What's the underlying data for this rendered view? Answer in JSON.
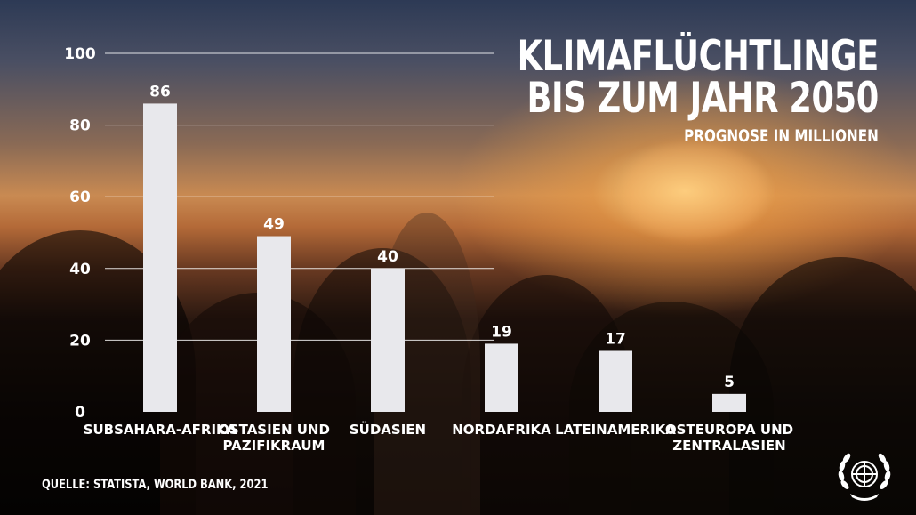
{
  "header": {
    "title_line1": "KLIMAFLÜCHTLINGE",
    "title_line2": "BIS ZUM JAHR 2050",
    "subtitle": "PROGNOSE IN MILLIONEN"
  },
  "footer": {
    "source": "QUELLE: STATISTA, WORLD BANK, 2021"
  },
  "logo": {
    "icon": "un-emblem-icon"
  },
  "colors": {
    "bar": "#e8e8ec",
    "text": "#ffffff",
    "grid": "#ffffff"
  },
  "chart_data": {
    "type": "bar",
    "title": "KLIMAFLÜCHTLINGE BIS ZUM JAHR 2050",
    "subtitle": "PROGNOSE IN MILLIONEN",
    "categories": [
      [
        "SUBSAHARA-AFRIKA"
      ],
      [
        "OSTASIEN UND",
        "PAZIFIKRAUM"
      ],
      [
        "SÜDASIEN"
      ],
      [
        "NORDAFRIKA"
      ],
      [
        "LATEINAMERIKA"
      ],
      [
        "OSTEUROPA UND",
        "ZENTRALASIEN"
      ]
    ],
    "values": [
      86,
      49,
      40,
      19,
      17,
      5
    ],
    "ylim": [
      0,
      100
    ],
    "yticks": [
      0,
      20,
      40,
      60,
      80,
      100
    ],
    "grid": true,
    "xlabel": "",
    "ylabel": ""
  }
}
